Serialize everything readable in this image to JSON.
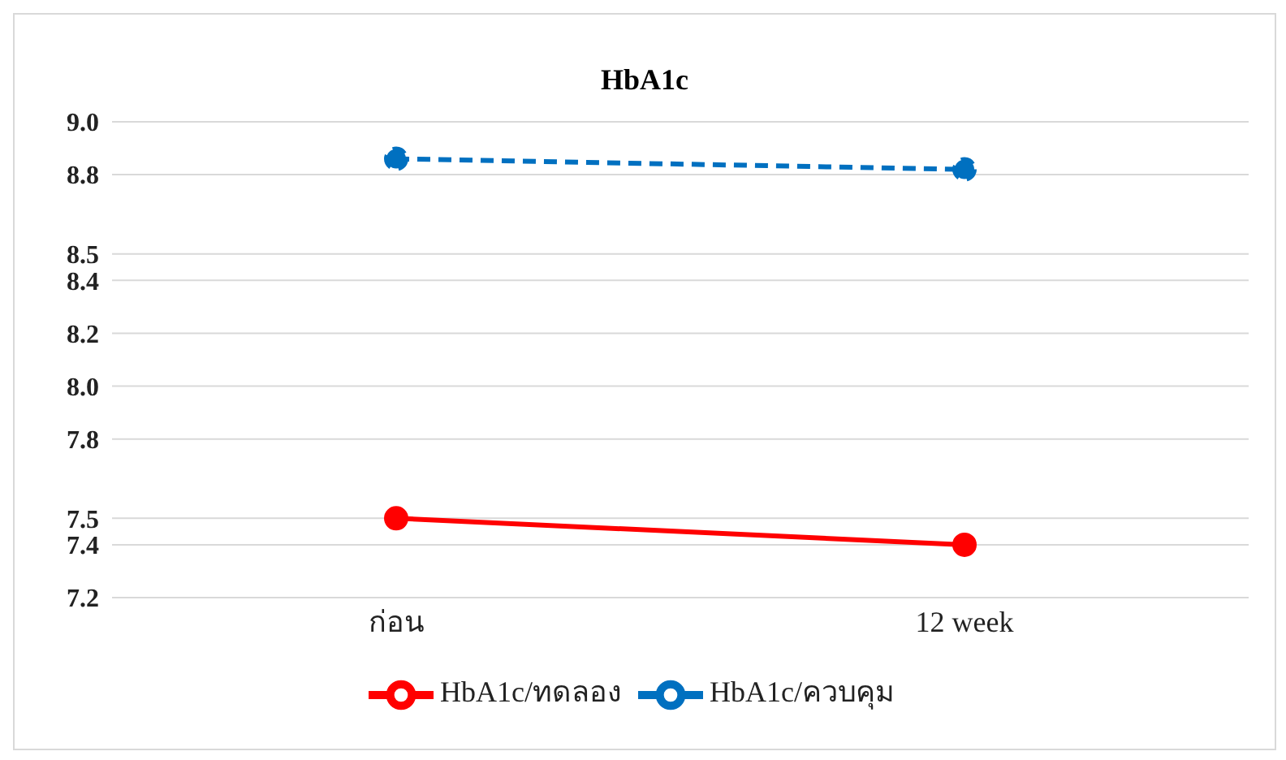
{
  "chart_data": {
    "type": "line",
    "title": "HbA1c",
    "categories": [
      "ก่อน",
      "12 week"
    ],
    "series": [
      {
        "name": "HbA1c/ทดลอง",
        "color": "#ff0000",
        "values": [
          7.5,
          7.4
        ],
        "line_style": "solid"
      },
      {
        "name": "HbA1c/ควบคุม",
        "color": "#0070c0",
        "values": [
          8.86,
          8.82
        ],
        "line_style": "dashed"
      }
    ],
    "ylim": [
      7.2,
      9.0
    ],
    "yticks": [
      7.2,
      7.4,
      7.5,
      7.8,
      {
        "value": 8.0,
        "label": "8.0"
      },
      8.2,
      8.4,
      8.5,
      8.8,
      {
        "value": 9.0,
        "label": "9.0"
      }
    ],
    "grid": "y",
    "legend": "bottom",
    "marker": "circle"
  }
}
